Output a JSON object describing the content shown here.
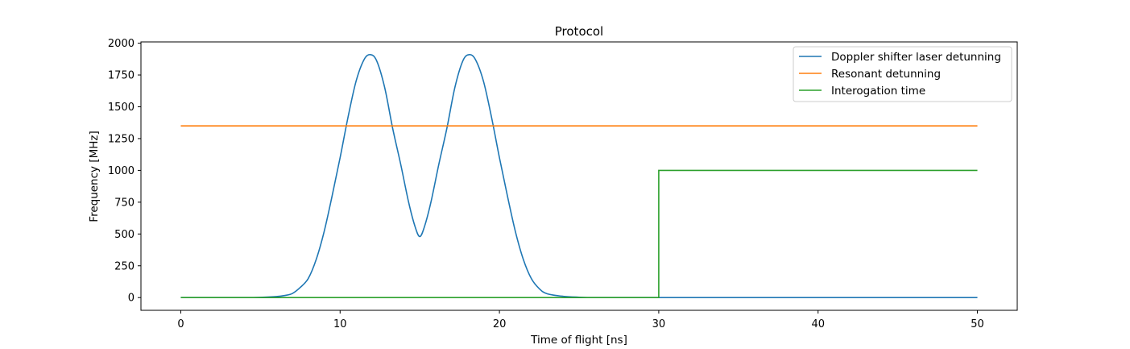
{
  "chart_data": {
    "type": "line",
    "title": "Protocol",
    "xlabel": "Time of flight [ns]",
    "ylabel": "Frequency [MHz]",
    "xlim": [
      -2.5,
      52.5
    ],
    "ylim": [
      -100,
      2010
    ],
    "xticks": [
      0,
      10,
      20,
      30,
      40,
      50
    ],
    "yticks": [
      0,
      250,
      500,
      750,
      1000,
      1250,
      1500,
      1750,
      2000
    ],
    "grid": false,
    "legend_position": "top-right",
    "series": [
      {
        "name": "Doppler shifter laser detunning",
        "color": "#1f77b4",
        "x": [
          0,
          2,
          4,
          5,
          6,
          6.5,
          7,
          7.5,
          8,
          8.5,
          9,
          9.5,
          10,
          10.5,
          11,
          11.5,
          11.9,
          12.3,
          12.8,
          13.3,
          13.8,
          14.3,
          14.7,
          15,
          15.3,
          15.7,
          16.2,
          16.7,
          17.2,
          17.7,
          18.1,
          18.5,
          19,
          19.5,
          20,
          20.5,
          21,
          21.5,
          22,
          22.5,
          23,
          24,
          25,
          26,
          28,
          30,
          35,
          40,
          45,
          50
        ],
        "y": [
          0,
          0,
          0,
          2,
          8,
          16,
          32,
          80,
          150,
          300,
          520,
          800,
          1100,
          1420,
          1700,
          1870,
          1910,
          1860,
          1650,
          1330,
          1050,
          750,
          560,
          480,
          560,
          750,
          1050,
          1330,
          1650,
          1860,
          1910,
          1870,
          1700,
          1420,
          1100,
          800,
          520,
          300,
          150,
          70,
          30,
          10,
          3,
          0,
          0,
          0,
          0,
          0,
          0,
          0
        ]
      },
      {
        "name": "Resonant detunning",
        "color": "#ff7f0e",
        "x": [
          0,
          50
        ],
        "y": [
          1350,
          1350
        ]
      },
      {
        "name": "Interogation time",
        "color": "#2ca02c",
        "x": [
          0,
          30,
          30,
          50
        ],
        "y": [
          0,
          0,
          1000,
          1000
        ]
      }
    ]
  }
}
